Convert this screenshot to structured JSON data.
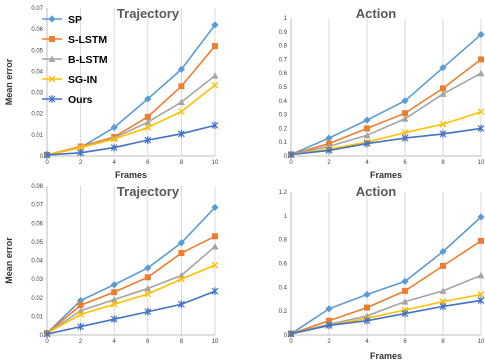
{
  "colors": {
    "SP": "#5b9bd5",
    "S-LSTM": "#ed7d31",
    "B-LSTM": "#a5a5a5",
    "SG-IN": "#ffc000",
    "Ours": "#4472c4"
  },
  "chart_data": [
    {
      "type": "line",
      "title": "Trajectory",
      "xlabel": "Frames",
      "ylabel": "Mean error",
      "x": [
        0,
        2,
        4,
        6,
        8,
        10
      ],
      "xticks": [
        "0",
        "2",
        "4",
        "6",
        "8",
        "10"
      ],
      "ylim": [
        0,
        0.07
      ],
      "yticks": [
        0,
        0.01,
        0.02,
        0.03,
        0.04,
        0.05,
        0.06,
        0.07
      ],
      "ytick_labels": [
        "0",
        "0.01",
        "0.02",
        "0.03",
        "0.04",
        "0.05",
        "0.06",
        "0.07"
      ],
      "grid": "vertical",
      "legend": "left",
      "series": [
        {
          "name": "SP",
          "marker": "diamond",
          "values": [
            0.0005,
            0.004,
            0.0135,
            0.027,
            0.041,
            0.062
          ]
        },
        {
          "name": "S-LSTM",
          "marker": "square",
          "values": [
            0.0005,
            0.0045,
            0.009,
            0.0185,
            0.033,
            0.052
          ]
        },
        {
          "name": "B-LSTM",
          "marker": "triangle",
          "values": [
            0.0005,
            0.004,
            0.0085,
            0.016,
            0.0255,
            0.038
          ]
        },
        {
          "name": "SG-IN",
          "marker": "x",
          "values": [
            0.0005,
            0.004,
            0.008,
            0.0135,
            0.021,
            0.0335
          ]
        },
        {
          "name": "Ours",
          "marker": "star",
          "values": [
            0.0005,
            0.0015,
            0.004,
            0.0075,
            0.0105,
            0.0145
          ]
        }
      ]
    },
    {
      "type": "line",
      "title": "Action",
      "xlabel": "Frames",
      "ylabel": "",
      "x": [
        0,
        2,
        4,
        6,
        8,
        10
      ],
      "xticks": [
        "0",
        "2",
        "4",
        "6",
        "8",
        "10"
      ],
      "ylim": [
        0,
        1
      ],
      "yticks": [
        0,
        0.1,
        0.2,
        0.3,
        0.4,
        0.5,
        0.6,
        0.7,
        0.8,
        0.9,
        1
      ],
      "ytick_labels": [
        "0",
        "0.1",
        "0.2",
        "0.3",
        "0.4",
        "0.5",
        "0.6",
        "0.7",
        "0.8",
        "0.9",
        "1"
      ],
      "grid": "vertical",
      "series": [
        {
          "name": "SP",
          "marker": "diamond",
          "values": [
            0.01,
            0.13,
            0.26,
            0.4,
            0.64,
            0.88
          ]
        },
        {
          "name": "S-LSTM",
          "marker": "square",
          "values": [
            0.01,
            0.09,
            0.2,
            0.31,
            0.49,
            0.7
          ]
        },
        {
          "name": "B-LSTM",
          "marker": "triangle",
          "values": [
            0.01,
            0.07,
            0.15,
            0.27,
            0.45,
            0.6
          ]
        },
        {
          "name": "SG-IN",
          "marker": "x",
          "values": [
            0.01,
            0.05,
            0.1,
            0.17,
            0.23,
            0.32
          ]
        },
        {
          "name": "Ours",
          "marker": "star",
          "values": [
            0.01,
            0.04,
            0.09,
            0.13,
            0.16,
            0.2
          ]
        }
      ]
    },
    {
      "type": "line",
      "title": "Trajectory",
      "xlabel": "",
      "ylabel": "Mean error",
      "x": [
        0,
        2,
        4,
        6,
        8,
        10
      ],
      "xticks": [
        "0",
        "2",
        "4",
        "6",
        "8",
        "10"
      ],
      "ylim": [
        0,
        0.08
      ],
      "yticks": [
        0,
        0.01,
        0.02,
        0.03,
        0.04,
        0.05,
        0.06,
        0.07,
        0.08
      ],
      "ytick_labels": [
        "0",
        "0.01",
        "0.02",
        "0.03",
        "0.04",
        "0.05",
        "0.06",
        "0.07",
        "0.08"
      ],
      "grid": "vertical",
      "series": [
        {
          "name": "SP",
          "marker": "diamond",
          "values": [
            0.001,
            0.0185,
            0.027,
            0.036,
            0.0495,
            0.0685
          ]
        },
        {
          "name": "S-LSTM",
          "marker": "square",
          "values": [
            0.001,
            0.016,
            0.023,
            0.031,
            0.044,
            0.053
          ]
        },
        {
          "name": "B-LSTM",
          "marker": "triangle",
          "values": [
            0.001,
            0.013,
            0.019,
            0.025,
            0.032,
            0.0475
          ]
        },
        {
          "name": "SG-IN",
          "marker": "x",
          "values": [
            0.001,
            0.011,
            0.0165,
            0.022,
            0.03,
            0.0375
          ]
        },
        {
          "name": "Ours",
          "marker": "star",
          "values": [
            0.0005,
            0.0045,
            0.0085,
            0.0125,
            0.0165,
            0.0235
          ]
        }
      ]
    },
    {
      "type": "line",
      "title": "Action",
      "xlabel": "Frames",
      "ylabel": "",
      "x": [
        0,
        2,
        4,
        6,
        8,
        10
      ],
      "xticks": [
        "0",
        "2",
        "4",
        "6",
        "8",
        "10"
      ],
      "ylim": [
        0,
        1.2
      ],
      "yticks": [
        0,
        0.2,
        0.4,
        0.6,
        0.8,
        1,
        1.2
      ],
      "ytick_labels": [
        "0",
        "0.2",
        "0.4",
        "0.6",
        "0.8",
        "1",
        "1.2"
      ],
      "grid": "vertical",
      "series": [
        {
          "name": "SP",
          "marker": "diamond",
          "values": [
            0.01,
            0.22,
            0.34,
            0.45,
            0.7,
            0.99
          ]
        },
        {
          "name": "S-LSTM",
          "marker": "square",
          "values": [
            0.01,
            0.12,
            0.23,
            0.37,
            0.58,
            0.79
          ]
        },
        {
          "name": "B-LSTM",
          "marker": "triangle",
          "values": [
            0.01,
            0.09,
            0.16,
            0.28,
            0.37,
            0.5
          ]
        },
        {
          "name": "SG-IN",
          "marker": "x",
          "values": [
            0.01,
            0.08,
            0.14,
            0.21,
            0.28,
            0.34
          ]
        },
        {
          "name": "Ours",
          "marker": "star",
          "values": [
            0.01,
            0.08,
            0.12,
            0.18,
            0.24,
            0.29
          ]
        }
      ]
    }
  ]
}
